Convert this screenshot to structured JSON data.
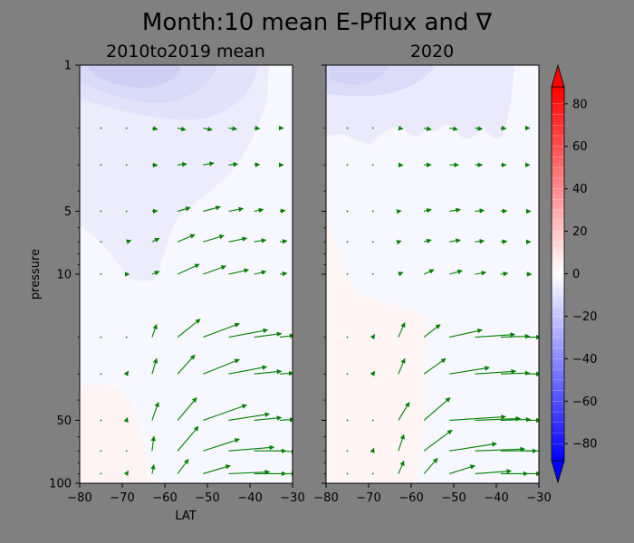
{
  "figure": {
    "suptitle": "Month:10 mean E-Pflux and ∇",
    "background": "#808080",
    "arrow_color": "#008000"
  },
  "chart_data": [
    {
      "type": "contour",
      "title": "2010to2019 mean",
      "xlabel": "LAT",
      "ylabel": "pressure",
      "xlim": [
        -80,
        -30
      ],
      "ylim": [
        100,
        1
      ],
      "yscale": "log",
      "xticks": [
        "−80",
        "−70",
        "−60",
        "−50",
        "−40",
        "−30"
      ],
      "yticks": [
        1,
        5,
        10,
        50,
        100
      ],
      "ytick_labels": [
        "1",
        "5",
        "10",
        "50",
        "100"
      ],
      "contour_field": "divergence (weak negative aloft, near zero below)",
      "quiver": [
        {
          "p": 2,
          "lat": [
            -75,
            -69,
            -63,
            -57,
            -51,
            -45,
            -39,
            -33
          ],
          "u": [
            0.1,
            0.2,
            0.6,
            0.9,
            1.0,
            0.9,
            0.6,
            0.4
          ],
          "v": [
            0,
            -0.05,
            -0.15,
            -0.2,
            -0.2,
            -0.1,
            -0.05,
            0
          ]
        },
        {
          "p": 3,
          "lat": [
            -75,
            -69,
            -63,
            -57,
            -51,
            -45,
            -39,
            -33
          ],
          "u": [
            0.1,
            0.2,
            0.6,
            1.0,
            1.2,
            1.0,
            0.6,
            0.4
          ],
          "v": [
            0,
            0,
            -0.05,
            0.1,
            0.2,
            0.1,
            0.05,
            0
          ]
        },
        {
          "p": 5,
          "lat": [
            -75,
            -69,
            -63,
            -57,
            -51,
            -45,
            -39,
            -33
          ],
          "u": [
            0.1,
            0.2,
            0.6,
            1.4,
            1.9,
            1.6,
            1.0,
            0.6
          ],
          "v": [
            0,
            0,
            0.05,
            0.4,
            0.5,
            0.3,
            0.2,
            0.1
          ]
        },
        {
          "p": 7,
          "lat": [
            -75,
            -69,
            -63,
            -57,
            -51,
            -45,
            -39,
            -33
          ],
          "u": [
            0.1,
            0.5,
            0.8,
            1.9,
            2.3,
            2.0,
            1.3,
            0.8
          ],
          "v": [
            0,
            0.15,
            0.4,
            0.8,
            0.7,
            0.4,
            0.2,
            0.1
          ]
        },
        {
          "p": 10,
          "lat": [
            -75,
            -69,
            -63,
            -57,
            -51,
            -45,
            -39,
            -33
          ],
          "u": [
            0.1,
            0.3,
            0.8,
            2.4,
            2.5,
            2.2,
            1.3,
            0.8
          ],
          "v": [
            0,
            0,
            0.3,
            1.1,
            0.9,
            0.5,
            0.3,
            0.1
          ]
        },
        {
          "p": 20,
          "lat": [
            -75,
            -69,
            -63,
            -57,
            -51,
            -45,
            -39,
            -33
          ],
          "u": [
            0.1,
            0.2,
            0.5,
            2.5,
            4.0,
            4.3,
            3.0,
            1.6
          ],
          "v": [
            0,
            0.05,
            1.4,
            2.0,
            1.5,
            0.8,
            0.4,
            0.2
          ]
        },
        {
          "p": 30,
          "lat": [
            -75,
            -69,
            -63,
            -57,
            -51,
            -45,
            -39,
            -33
          ],
          "u": [
            0.1,
            0.2,
            0.5,
            1.9,
            4.0,
            4.2,
            3.0,
            1.5
          ],
          "v": [
            0,
            0.3,
            1.7,
            2.1,
            1.6,
            0.8,
            0.3,
            0.1
          ]
        },
        {
          "p": 50,
          "lat": [
            -75,
            -69,
            -63,
            -57,
            -51,
            -45,
            -39,
            -33
          ],
          "u": [
            0.1,
            0.1,
            0.7,
            2.1,
            4.8,
            4.5,
            3.0,
            1.6
          ],
          "v": [
            0,
            0.3,
            2.0,
            2.5,
            1.7,
            0.7,
            0.3,
            0.1
          ]
        },
        {
          "p": 70,
          "lat": [
            -75,
            -69,
            -63,
            -57,
            -51,
            -45,
            -39,
            -33
          ],
          "u": [
            0.1,
            0.1,
            0.2,
            2.3,
            4.0,
            5.0,
            3.5,
            1.8
          ],
          "v": [
            0,
            0.2,
            1.6,
            2.7,
            1.3,
            0.4,
            0.0,
            -0.1
          ]
        },
        {
          "p": 90,
          "lat": [
            -75,
            -69,
            -63,
            -57,
            -51,
            -45,
            -39,
            -33
          ],
          "u": [
            0.1,
            0.2,
            0.2,
            1.2,
            3.0,
            4.5,
            3.5,
            1.8
          ],
          "v": [
            0,
            0.3,
            1.0,
            1.6,
            0.9,
            0.2,
            0.0,
            0
          ]
        }
      ]
    },
    {
      "type": "contour",
      "title": "2020",
      "xlabel": "",
      "ylabel": "",
      "xlim": [
        -80,
        -30
      ],
      "ylim": [
        100,
        1
      ],
      "yscale": "log",
      "xticks": [
        "−80",
        "−70",
        "−60",
        "−50",
        "−40",
        "−30"
      ],
      "contour_field": "divergence (weak negative aloft, near zero below)",
      "quiver": [
        {
          "p": 2,
          "lat": [
            -75,
            -69,
            -63,
            -57,
            -51,
            -45,
            -39,
            -33
          ],
          "u": [
            0.1,
            0.2,
            0.5,
            0.8,
            0.9,
            0.8,
            0.6,
            0.4
          ],
          "v": [
            0,
            -0.05,
            -0.1,
            -0.15,
            -0.15,
            -0.1,
            -0.05,
            0
          ]
        },
        {
          "p": 3,
          "lat": [
            -75,
            -69,
            -63,
            -57,
            -51,
            -45,
            -39,
            -33
          ],
          "u": [
            0.1,
            0.2,
            0.5,
            0.8,
            1.0,
            0.8,
            0.6,
            0.4
          ],
          "v": [
            0,
            0,
            -0.05,
            0,
            0,
            0,
            0,
            0
          ]
        },
        {
          "p": 5,
          "lat": [
            -75,
            -69,
            -63,
            -57,
            -51,
            -45,
            -39,
            -33
          ],
          "u": [
            0.1,
            0.2,
            0.3,
            0.8,
            1.2,
            1.0,
            0.7,
            0.5
          ],
          "v": [
            0,
            0,
            0.05,
            0.2,
            0.2,
            0.1,
            0.05,
            0
          ]
        },
        {
          "p": 7,
          "lat": [
            -75,
            -69,
            -63,
            -57,
            -51,
            -45,
            -39,
            -33
          ],
          "u": [
            0.1,
            0.2,
            0.3,
            0.8,
            1.2,
            1.0,
            0.7,
            0.5
          ],
          "v": [
            0,
            0,
            0.1,
            0.2,
            0.2,
            0.1,
            0.05,
            0
          ]
        },
        {
          "p": 10,
          "lat": [
            -75,
            -69,
            -63,
            -57,
            -51,
            -45,
            -39,
            -33
          ],
          "u": [
            0.1,
            0.1,
            0.5,
            1.1,
            1.4,
            1.2,
            0.8,
            0.6
          ],
          "v": [
            0,
            0,
            0.2,
            0.5,
            0.4,
            0.2,
            0.1,
            0
          ]
        },
        {
          "p": 20,
          "lat": [
            -75,
            -69,
            -63,
            -57,
            -51,
            -45,
            -39,
            -33
          ],
          "u": [
            0.1,
            0.2,
            0.7,
            1.8,
            3.6,
            4.4,
            3.2,
            1.6
          ],
          "v": [
            0,
            0.3,
            1.6,
            1.4,
            0.8,
            0.3,
            0.1,
            0
          ]
        },
        {
          "p": 30,
          "lat": [
            -75,
            -69,
            -63,
            -57,
            -51,
            -45,
            -39,
            -33
          ],
          "u": [
            0.1,
            0.2,
            0.7,
            2.4,
            4.4,
            4.5,
            3.2,
            1.6
          ],
          "v": [
            0,
            0.3,
            1.7,
            1.7,
            0.7,
            0.3,
            0.1,
            0
          ]
        },
        {
          "p": 50,
          "lat": [
            -75,
            -69,
            -63,
            -57,
            -51,
            -45,
            -39,
            -33
          ],
          "u": [
            0.1,
            0.1,
            1.2,
            2.9,
            6.2,
            5.0,
            3.3,
            1.6
          ],
          "v": [
            0,
            0.2,
            2.0,
            2.5,
            0.4,
            0.2,
            0.1,
            0
          ]
        },
        {
          "p": 70,
          "lat": [
            -75,
            -69,
            -63,
            -57,
            -51,
            -45,
            -39,
            -33
          ],
          "u": [
            0.1,
            0.1,
            0.6,
            3.1,
            5.2,
            5.5,
            4.0,
            2.0
          ],
          "v": [
            0,
            0.3,
            1.8,
            2.3,
            0.8,
            0.2,
            0,
            0
          ]
        },
        {
          "p": 90,
          "lat": [
            -75,
            -69,
            -63,
            -57,
            -51,
            -45,
            -39,
            -33
          ],
          "u": [
            0.1,
            0.1,
            0.6,
            1.5,
            2.8,
            4.0,
            3.0,
            1.6
          ],
          "v": [
            0,
            0.2,
            1.4,
            1.7,
            0.9,
            0.3,
            0,
            0
          ]
        }
      ]
    },
    {
      "type": "colorbar",
      "cmap": "bwr",
      "range": [
        -88,
        88
      ],
      "ticks": [
        -80,
        -60,
        -40,
        -20,
        0,
        20,
        40,
        60,
        80
      ],
      "tick_labels": [
        "−80",
        "−60",
        "−40",
        "−20",
        "0",
        "20",
        "40",
        "60",
        "80"
      ],
      "extend": "both"
    }
  ]
}
